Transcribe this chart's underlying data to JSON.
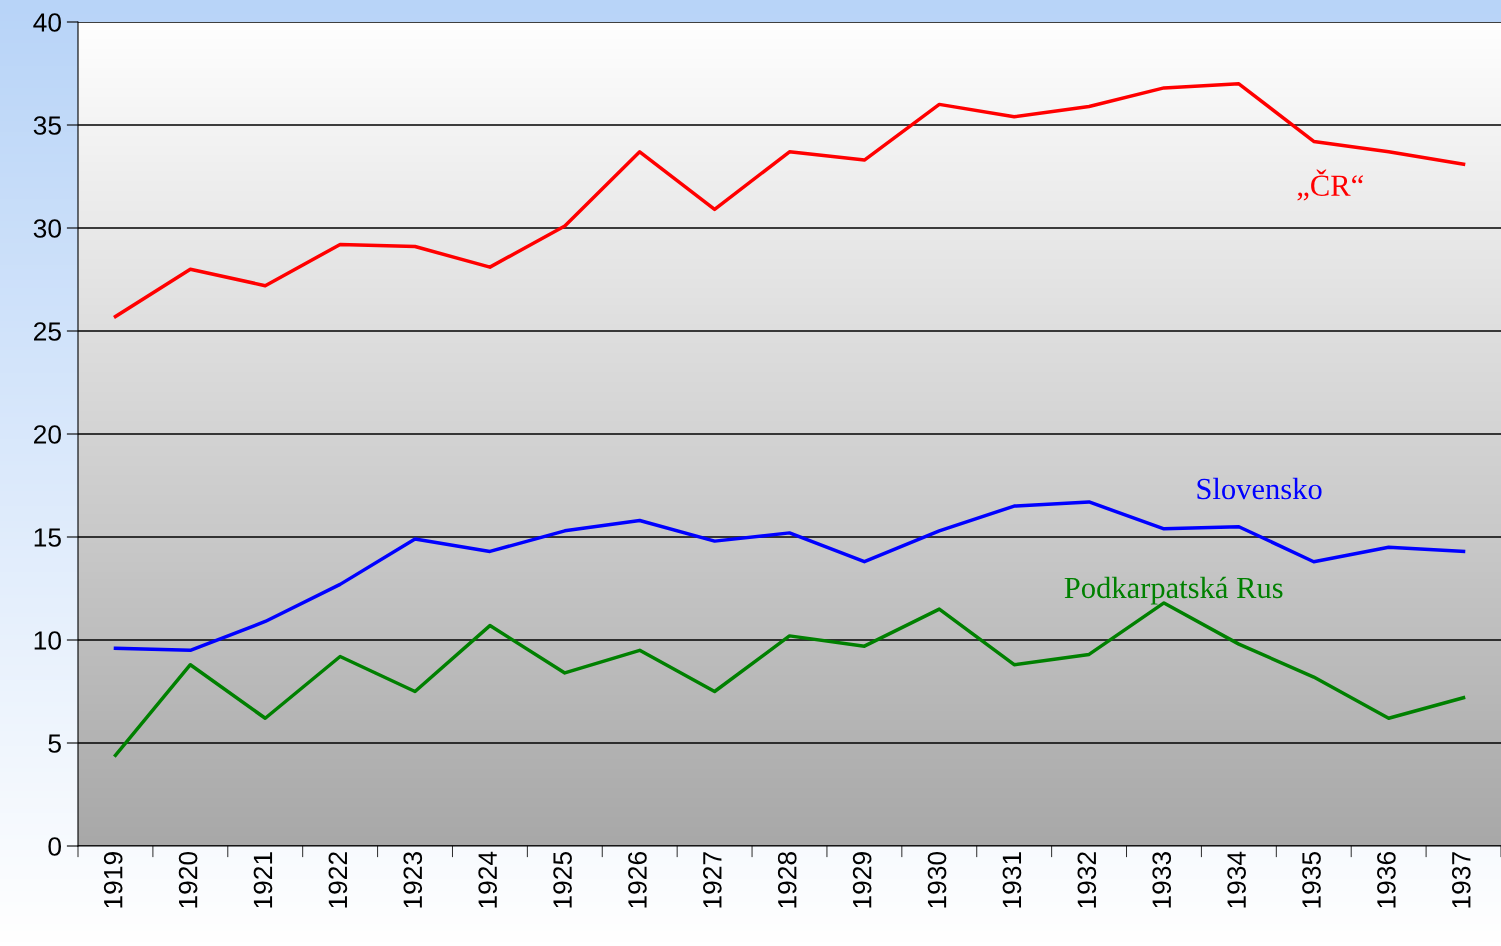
{
  "chart_data": {
    "type": "line",
    "categories": [
      "1919",
      "1920",
      "1921",
      "1922",
      "1923",
      "1924",
      "1925",
      "1926",
      "1927",
      "1928",
      "1929",
      "1930",
      "1931",
      "1932",
      "1933",
      "1934",
      "1935",
      "1936",
      "1937"
    ],
    "series": [
      {
        "name": "„ČR“",
        "color": "#ff0000",
        "values": [
          25.7,
          28.0,
          27.2,
          29.2,
          29.1,
          28.1,
          30.1,
          33.7,
          30.9,
          33.7,
          33.3,
          36.0,
          35.4,
          35.9,
          36.8,
          37.0,
          34.2,
          33.7,
          33.1
        ]
      },
      {
        "name": "Slovensko",
        "color": "#0000ff",
        "values": [
          9.6,
          9.5,
          10.9,
          12.7,
          14.9,
          14.3,
          15.3,
          15.8,
          14.8,
          15.2,
          13.8,
          15.3,
          16.5,
          16.7,
          15.4,
          15.5,
          13.8,
          14.5,
          14.3
        ]
      },
      {
        "name": "Podkarpatská Rus",
        "color": "#008000",
        "values": [
          4.4,
          8.8,
          6.2,
          9.2,
          7.5,
          10.7,
          8.4,
          9.5,
          7.5,
          10.2,
          9.7,
          11.5,
          8.8,
          9.3,
          11.8,
          9.8,
          8.2,
          6.2,
          7.2
        ]
      }
    ],
    "ylim": [
      0,
      40
    ],
    "yticks": [
      0,
      5,
      10,
      15,
      20,
      25,
      30,
      35,
      40
    ],
    "grid": "y",
    "legend": false,
    "marker": "none",
    "line_style": "solid"
  }
}
